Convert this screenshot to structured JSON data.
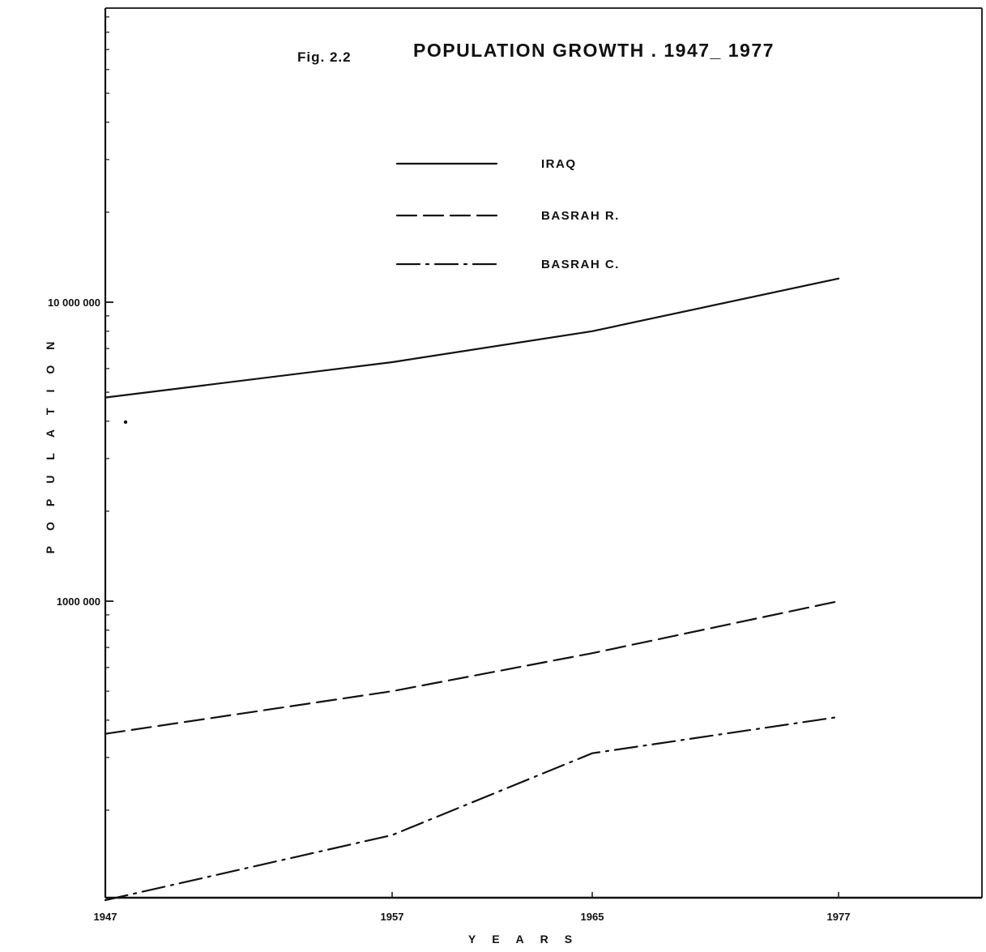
{
  "figure": {
    "label": "Fig. 2.2",
    "title": "POPULATION GROWTH . 1947_ 1977"
  },
  "chart_data": {
    "type": "line",
    "title": "POPULATION GROWTH . 1947_ 1977",
    "xlabel": "Y E A R S",
    "ylabel": "P O P U L A T I O N",
    "x_ticks": [
      "1947",
      "1957",
      "1965",
      "1977"
    ],
    "y_ticks": [
      "10 000 000",
      "1000 000"
    ],
    "y_scale": "log",
    "xlim": [
      1947,
      1982
    ],
    "ylim": [
      100000,
      100000000
    ],
    "grid": false,
    "legend_position": "top-center",
    "series": [
      {
        "name": "IRAQ",
        "style": "solid",
        "x": [
          1947,
          1957,
          1965,
          1977
        ],
        "y": [
          4800000,
          6300000,
          8000000,
          12000000
        ]
      },
      {
        "name": "BASRAH R.",
        "style": "dashed",
        "x": [
          1947,
          1957,
          1965,
          1977
        ],
        "y": [
          360000,
          500000,
          670000,
          1000000
        ]
      },
      {
        "name": "BASRAH C.",
        "style": "dash-dot",
        "x": [
          1947,
          1957,
          1965,
          1977
        ],
        "y": [
          100000,
          165000,
          310000,
          410000
        ]
      }
    ]
  },
  "colors": {
    "ink": "#111111",
    "paper": "#ffffff"
  }
}
